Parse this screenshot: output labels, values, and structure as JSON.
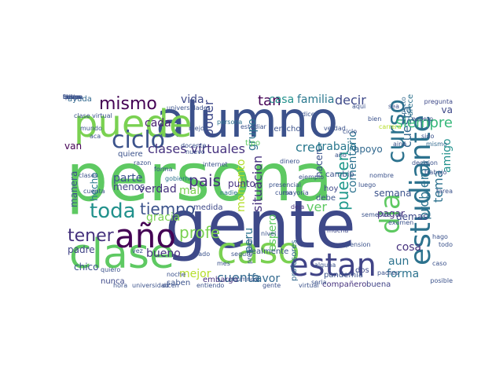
{
  "words": [
    {
      "text": "persona",
      "color": "#5ec962",
      "rotated": false
    },
    {
      "text": "alumno",
      "color": "#3b518b",
      "rotated": false
    },
    {
      "text": "gente",
      "color": "#3e4989",
      "rotated": false
    },
    {
      "text": "clase",
      "color": "#5ec962",
      "rotated": false
    },
    {
      "text": "puede",
      "color": "#7ad151",
      "rotated": false
    },
    {
      "text": "estudiante",
      "color": "#2c728e",
      "rotated": true
    },
    {
      "text": "caso",
      "color": "#7ad151",
      "rotated": false
    },
    {
      "text": "estan",
      "color": "#414487",
      "rotated": false
    },
    {
      "text": "año",
      "color": "#440154",
      "rotated": false
    },
    {
      "text": "dia",
      "color": "#5ec962",
      "rotated": true
    },
    {
      "text": "curso",
      "color": "#2c728e",
      "rotated": true
    },
    {
      "text": "ciclo",
      "color": "#3b528b",
      "rotated": false
    },
    {
      "text": "toda",
      "color": "#21918c",
      "rotated": false
    },
    {
      "text": "mismo",
      "color": "#440154",
      "rotated": false
    },
    {
      "text": "tener",
      "color": "#46327e",
      "rotated": false
    },
    {
      "text": "tiempo",
      "color": "#3b528b",
      "rotated": false
    },
    {
      "text": "pais",
      "color": "#46327e",
      "rotated": false
    },
    {
      "text": "profe",
      "color": "#7ad151",
      "rotated": false
    },
    {
      "text": "pueden",
      "color": "#1f988b",
      "rotated": true
    },
    {
      "text": "cuesta",
      "color": "#31688e",
      "rotated": true
    },
    {
      "text": "clases virtuales",
      "color": "#46327e",
      "rotated": false
    },
    {
      "text": "siempre",
      "color": "#35b779",
      "rotated": false
    },
    {
      "text": "tan",
      "color": "#440154",
      "rotated": false
    },
    {
      "text": "creo",
      "color": "#2a788e",
      "rotated": false
    },
    {
      "text": "cada",
      "color": "#481f70",
      "rotated": false
    },
    {
      "text": "vida",
      "color": "#3e4989",
      "rotated": false
    },
    {
      "text": "casa",
      "color": "#21918c",
      "rotated": false
    },
    {
      "text": "familia",
      "color": "#2a788e",
      "rotated": false
    },
    {
      "text": "decir",
      "color": "#3e4989",
      "rotated": false
    },
    {
      "text": "trabajo",
      "color": "#2a788e",
      "rotated": false
    },
    {
      "text": "grupo",
      "color": "#2c728e",
      "rotated": true
    },
    {
      "text": "poder",
      "color": "#3e4989",
      "rotated": true
    },
    {
      "text": "cuenta",
      "color": "#31688e",
      "rotated": false
    },
    {
      "text": "mejor",
      "color": "#b5de2b",
      "rotated": false
    },
    {
      "text": "mal",
      "color": "#7ad151",
      "rotated": false
    },
    {
      "text": "verdad",
      "color": "#46327e",
      "rotated": false
    },
    {
      "text": "parte",
      "color": "#3b528b",
      "rotated": false
    },
    {
      "text": "menos",
      "color": "#414487",
      "rotated": false
    },
    {
      "text": "manera",
      "color": "#3b528b",
      "rotated": true
    },
    {
      "text": "hecho",
      "color": "#2a788e",
      "rotated": true
    },
    {
      "text": "gracia",
      "color": "#7ad151",
      "rotated": false
    },
    {
      "text": "bueno",
      "color": "#46327e",
      "rotated": false
    },
    {
      "text": "padre",
      "color": "#414487",
      "rotated": false
    },
    {
      "text": "chico",
      "color": "#3b528b",
      "rotated": false
    },
    {
      "text": "van",
      "color": "#440154",
      "rotated": false
    },
    {
      "text": "ayuda",
      "color": "#31688e",
      "rotated": false
    },
    {
      "text": "ver",
      "color": "#5ec962",
      "rotated": false
    },
    {
      "text": "aun",
      "color": "#2c728e",
      "rotated": false
    },
    {
      "text": "cosa",
      "color": "#46327e",
      "rotated": false
    },
    {
      "text": "forma",
      "color": "#2c728e",
      "rotated": false
    },
    {
      "text": "problema",
      "color": "#2c728e",
      "rotated": true
    },
    {
      "text": "tema",
      "color": "#2c728e",
      "rotated": true
    },
    {
      "text": "amigo",
      "color": "#21918c",
      "rotated": true
    },
    {
      "text": "espero",
      "color": "#5ec962",
      "rotated": true
    },
    {
      "text": "peru",
      "color": "#2c728e",
      "rotated": true
    },
    {
      "text": "situacion",
      "color": "#46327e",
      "rotated": true
    },
    {
      "text": "comentario",
      "color": "#2c728e",
      "rotated": true
    },
    {
      "text": "momento",
      "color": "#b5de2b",
      "rotated": true
    },
    {
      "text": "favor",
      "color": "#31688e",
      "rotated": false
    },
    {
      "text": "semana",
      "color": "#3b528b",
      "rotated": false
    },
    {
      "text": "punto",
      "color": "#46327e",
      "rotated": false
    },
    {
      "text": "va",
      "color": "#3e4989",
      "rotated": false
    },
    {
      "text": "apoyo",
      "color": "#31688e",
      "rotated": false
    },
    {
      "text": "quiere",
      "color": "#3b528b",
      "rotated": false
    },
    {
      "text": "derecho",
      "color": "#3b528b",
      "rotated": false
    },
    {
      "text": "hacen",
      "color": "#3b528b",
      "rotated": true
    },
    {
      "text": "hoy",
      "color": "#3e4989",
      "rotated": false
    },
    {
      "text": "debe",
      "color": "#3b528b",
      "rotated": false
    },
    {
      "text": "dos",
      "color": "#3e4989",
      "rotated": false
    },
    {
      "text": "buena",
      "color": "#414487",
      "rotated": false
    },
    {
      "text": "compañero",
      "color": "#46327e",
      "rotated": false
    },
    {
      "text": "embargo",
      "color": "#46327e",
      "rotated": false
    },
    {
      "text": "saben",
      "color": "#3b528b",
      "rotated": false
    },
    {
      "text": "nunca",
      "color": "#3e4989",
      "rotated": false
    },
    {
      "text": "realmente",
      "color": "#3b528b",
      "rotated": false
    },
    {
      "text": "profesores",
      "color": "#31688e",
      "rotated": true
    },
    {
      "text": "medida",
      "color": "#3e4989",
      "rotated": false
    },
    {
      "text": "pandemia",
      "color": "#3b528b",
      "rotated": false
    },
    {
      "text": "pagar",
      "color": "#46327e",
      "rotated": false
    },
    {
      "text": "demas",
      "color": "#3e4989",
      "rotated": false
    },
    {
      "text": "parece",
      "color": "#2c728e",
      "rotated": true
    },
    {
      "text": "respecto",
      "color": "#31688e",
      "rotated": true
    },
    {
      "text": "sido",
      "color": "#3b528b",
      "rotated": false
    },
    {
      "text": "cambio",
      "color": "#3b528b",
      "rotated": false
    },
    {
      "text": "vez",
      "color": "#3b528b",
      "rotated": false
    },
    {
      "text": "tipo",
      "color": "#5ec962",
      "rotated": false
    },
    {
      "text": "nadie",
      "color": "#2c728e",
      "rotated": false
    },
    {
      "text": "profesor",
      "color": "#3b528b",
      "rotated": true
    },
    {
      "text": "deja",
      "color": "#46327e",
      "rotated": false
    },
    {
      "text": "curso",
      "color": "#3b528b",
      "rotated": false
    },
    {
      "text": "mucha",
      "color": "#3e4989",
      "rotated": false
    },
    {
      "text": "pregunta",
      "color": "#3e4989",
      "rotated": false
    },
    {
      "text": "mayoria",
      "color": "#3b528b",
      "rotated": false
    },
    {
      "text": "alguna",
      "color": "#3b528b",
      "rotated": false
    },
    {
      "text": "lado",
      "color": "#3b528b",
      "rotated": false
    },
    {
      "text": "quiero",
      "color": "#3b528b",
      "rotated": false
    },
    {
      "text": "seria",
      "color": "#3b528b",
      "rotated": false
    },
    {
      "text": "carrera",
      "color": "#b5de2b",
      "rotated": false
    },
    {
      "text": "clase virtual",
      "color": "#3b528b",
      "rotated": false
    },
    {
      "text": "universidades",
      "color": "#3b528b",
      "rotated": false
    },
    {
      "text": "aino",
      "color": "#3b528b",
      "rotated": false
    },
    {
      "text": "mismo",
      "color": "#31688e",
      "rotated": false
    },
    {
      "text": "persona",
      "color": "#2c728e",
      "rotated": false
    },
    {
      "text": "nuevo",
      "color": "#3b528b",
      "rotated": false
    },
    {
      "text": "aqui",
      "color": "#3b528b",
      "rotated": false
    },
    {
      "text": "sea",
      "color": "#3b528b",
      "rotated": false
    },
    {
      "text": "forma",
      "color": "#3b528b",
      "rotated": false
    },
    {
      "text": "gobierno",
      "color": "#2c728e",
      "rotated": false
    },
    {
      "text": "decision",
      "color": "#3b528b",
      "rotated": false
    },
    {
      "text": "nombre",
      "color": "#3b528b",
      "rotated": false
    },
    {
      "text": "ejemplo",
      "color": "#3b528b",
      "rotated": false
    },
    {
      "text": "seguro",
      "color": "#3b528b",
      "rotated": false
    },
    {
      "text": "entiendo",
      "color": "#3b528b",
      "rotated": false
    },
    {
      "text": "hora",
      "color": "#3b528b",
      "rotated": false
    },
    {
      "text": "mundo",
      "color": "#3b528b",
      "rotated": false
    },
    {
      "text": "aca",
      "color": "#3b528b",
      "rotated": false
    },
    {
      "text": "semestre",
      "color": "#3b528b",
      "rotated": false
    },
    {
      "text": "dinero",
      "color": "#3b528b",
      "rotated": false
    },
    {
      "text": "internet",
      "color": "#3b528b",
      "rotated": false
    },
    {
      "text": "universidad",
      "color": "#3b528b",
      "rotated": false
    },
    {
      "text": "pension",
      "color": "#3b528b",
      "rotated": false
    },
    {
      "text": "cuenta",
      "color": "#3b528b",
      "rotated": false
    },
    {
      "text": "alumnos",
      "color": "#3b528b",
      "rotated": false
    },
    {
      "text": "nivel",
      "color": "#3b528b",
      "rotated": false
    },
    {
      "text": "examen",
      "color": "#3b528b",
      "rotated": false
    },
    {
      "text": "caso",
      "color": "#3b528b",
      "rotated": false
    },
    {
      "text": "posible",
      "color": "#3b528b",
      "rotated": false
    },
    {
      "text": "espero",
      "color": "#3b528b",
      "rotated": false
    },
    {
      "text": "estudiar",
      "color": "#3b528b",
      "rotated": false
    },
    {
      "text": "verdad",
      "color": "#3b528b",
      "rotated": false
    },
    {
      "text": "mejor",
      "color": "#3b528b",
      "rotated": false
    },
    {
      "text": "virtual",
      "color": "#3b528b",
      "rotated": false
    },
    {
      "text": "presencial",
      "color": "#3b528b",
      "rotated": false
    },
    {
      "text": "padres",
      "color": "#3b528b",
      "rotated": false
    },
    {
      "text": "gente",
      "color": "#3b528b",
      "rotated": false
    },
    {
      "text": "luego",
      "color": "#3b528b",
      "rotated": false
    },
    {
      "text": "mes",
      "color": "#3b528b",
      "rotated": false
    },
    {
      "text": "noche",
      "color": "#3b528b",
      "rotated": false
    },
    {
      "text": "clases",
      "color": "#3b528b",
      "rotated": false
    },
    {
      "text": "docente",
      "color": "#3b528b",
      "rotated": false
    },
    {
      "text": "ciclo",
      "color": "#3b528b",
      "rotated": false
    },
    {
      "text": "año",
      "color": "#3b528b",
      "rotated": false
    },
    {
      "text": "razon",
      "color": "#3b528b",
      "rotated": false
    },
    {
      "text": "tarea",
      "color": "#3b528b",
      "rotated": false
    },
    {
      "text": "trabajo",
      "color": "#3b528b",
      "rotated": false
    },
    {
      "text": "todo",
      "color": "#3b528b",
      "rotated": false
    },
    {
      "text": "bien",
      "color": "#3b528b",
      "rotated": false
    },
    {
      "text": "dice",
      "color": "#3b528b",
      "rotated": false
    },
    {
      "text": "hago",
      "color": "#3b528b",
      "rotated": false
    },
    {
      "text": "dicen",
      "color": "#3b528b",
      "rotated": false
    },
    {
      "text": "quiera",
      "color": "#3b528b",
      "rotated": false
    },
    {
      "text": "tengo",
      "color": "#3b528b",
      "rotated": false
    },
    {
      "text": "ahora",
      "color": "#3b528b",
      "rotated": false
    },
    {
      "text": "tanto",
      "color": "#3b528b",
      "rotated": false
    },
    {
      "text": "cosas",
      "color": "#3b528b",
      "rotated": false
    },
    {
      "text": "deben",
      "color": "#3b528b",
      "rotated": false
    },
    {
      "text": "falta",
      "color": "#3b528b",
      "rotated": false
    },
    {
      "text": "bueno",
      "color": "#3b528b",
      "rotated": false
    }
  ]
}
